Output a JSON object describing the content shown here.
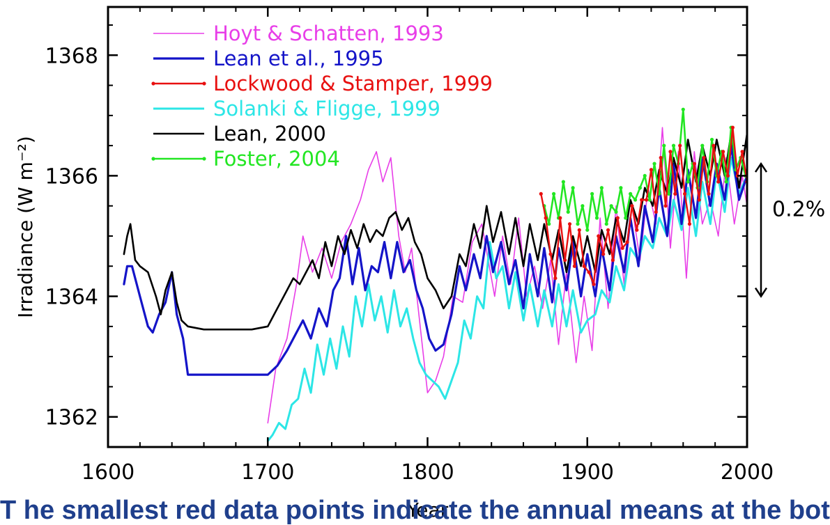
{
  "chart_data": {
    "type": "line",
    "title": "",
    "xlabel": "Year",
    "ylabel": "Irradiance (W m⁻²)",
    "xlim": [
      1600,
      2000
    ],
    "ylim": [
      1361.5,
      1368.8
    ],
    "x_ticks": [
      "1600",
      "1700",
      "1800",
      "1900",
      "2000"
    ],
    "y_ticks": [
      "1362",
      "1364",
      "1366",
      "1368"
    ],
    "legend_position": "top-left",
    "annotation": {
      "text": "0.2%",
      "range": [
        1364.0,
        1366.2
      ]
    },
    "series": [
      {
        "name": "Hoyt & Schatten, 1993",
        "color": "#e83ee8",
        "width": 1.6,
        "x": [
          1700,
          1705,
          1712,
          1718,
          1722,
          1728,
          1734,
          1740,
          1746,
          1752,
          1758,
          1763,
          1768,
          1772,
          1777,
          1782,
          1786,
          1790,
          1795,
          1800,
          1805,
          1810,
          1816,
          1822,
          1828,
          1834,
          1838,
          1842,
          1847,
          1852,
          1857,
          1862,
          1867,
          1872,
          1877,
          1882,
          1887,
          1893,
          1898,
          1903,
          1908,
          1913,
          1918,
          1923,
          1928,
          1933,
          1938,
          1943,
          1947,
          1952,
          1957,
          1962,
          1967,
          1972,
          1977,
          1982,
          1987,
          1992,
          1997,
          2000
        ],
        "y": [
          1361.9,
          1362.8,
          1363.3,
          1364.2,
          1365.0,
          1364.4,
          1364.8,
          1364.3,
          1364.9,
          1365.2,
          1365.6,
          1366.1,
          1366.4,
          1365.9,
          1366.3,
          1365.0,
          1364.4,
          1364.8,
          1363.6,
          1362.4,
          1362.6,
          1363.0,
          1364.0,
          1363.9,
          1364.9,
          1365.2,
          1364.6,
          1364.0,
          1365.0,
          1364.2,
          1365.3,
          1364.0,
          1364.5,
          1363.8,
          1364.6,
          1363.2,
          1364.4,
          1362.9,
          1364.0,
          1363.1,
          1365.3,
          1363.8,
          1365.5,
          1364.2,
          1365.5,
          1364.6,
          1365.8,
          1365.2,
          1366.8,
          1364.8,
          1366.4,
          1364.3,
          1366.4,
          1365.2,
          1365.6,
          1365.0,
          1366.3,
          1365.2,
          1366.0,
          1365.5
        ]
      },
      {
        "name": "Lean et al., 1995",
        "color": "#1414c8",
        "width": 3.2,
        "x": [
          1610,
          1612,
          1615,
          1620,
          1625,
          1628,
          1632,
          1636,
          1640,
          1643,
          1647,
          1650,
          1660,
          1670,
          1680,
          1690,
          1700,
          1706,
          1712,
          1718,
          1722,
          1727,
          1732,
          1737,
          1741,
          1745,
          1749,
          1753,
          1757,
          1761,
          1765,
          1769,
          1773,
          1777,
          1781,
          1785,
          1789,
          1793,
          1797,
          1801,
          1805,
          1810,
          1815,
          1820,
          1824,
          1829,
          1833,
          1837,
          1841,
          1846,
          1851,
          1855,
          1860,
          1864,
          1869,
          1873,
          1878,
          1882,
          1887,
          1891,
          1896,
          1900,
          1905,
          1909,
          1914,
          1918,
          1923,
          1927,
          1932,
          1936,
          1941,
          1945,
          1950,
          1954,
          1959,
          1963,
          1968,
          1972,
          1977,
          1981,
          1986,
          1990,
          1995,
          2000
        ],
        "y": [
          1364.2,
          1364.5,
          1364.5,
          1364.0,
          1363.5,
          1363.4,
          1363.7,
          1363.9,
          1364.4,
          1363.7,
          1363.3,
          1362.7,
          1362.7,
          1362.7,
          1362.7,
          1362.7,
          1362.7,
          1362.85,
          1363.1,
          1363.4,
          1363.6,
          1363.3,
          1363.8,
          1363.5,
          1364.1,
          1364.3,
          1365.0,
          1364.2,
          1364.8,
          1364.1,
          1364.5,
          1364.4,
          1364.9,
          1364.3,
          1364.9,
          1364.4,
          1364.6,
          1364.1,
          1363.8,
          1363.3,
          1363.1,
          1363.2,
          1363.7,
          1364.5,
          1364.1,
          1364.7,
          1364.3,
          1365.0,
          1364.4,
          1364.9,
          1364.2,
          1364.6,
          1363.8,
          1364.7,
          1364.0,
          1364.8,
          1363.9,
          1364.8,
          1364.1,
          1364.9,
          1364.0,
          1364.7,
          1364.0,
          1364.8,
          1364.1,
          1365.0,
          1364.4,
          1365.3,
          1364.5,
          1365.5,
          1364.9,
          1365.8,
          1365.0,
          1366.2,
          1365.2,
          1366.1,
          1365.3,
          1366.3,
          1365.5,
          1366.2,
          1365.6,
          1366.5,
          1365.6,
          1366.0
        ]
      },
      {
        "name": "Lockwood & Stamper, 1999",
        "color": "#e81010",
        "width": 2.4,
        "markers": true,
        "x": [
          1871,
          1874,
          1877,
          1880,
          1883,
          1886,
          1889,
          1892,
          1895,
          1898,
          1901,
          1904,
          1907,
          1910,
          1913,
          1916,
          1919,
          1922,
          1925,
          1928,
          1931,
          1934,
          1937,
          1940,
          1943,
          1946,
          1949,
          1952,
          1955,
          1958,
          1961,
          1964,
          1967,
          1970,
          1973,
          1976,
          1979,
          1982,
          1985,
          1988,
          1991,
          1994,
          1997,
          2000
        ],
        "y": [
          1365.7,
          1365.3,
          1364.7,
          1364.3,
          1365.3,
          1364.6,
          1365.2,
          1364.5,
          1365.1,
          1364.5,
          1364.4,
          1364.2,
          1365.0,
          1364.7,
          1365.1,
          1364.6,
          1365.3,
          1364.8,
          1364.9,
          1365.5,
          1365.1,
          1365.6,
          1365.6,
          1366.1,
          1365.4,
          1366.3,
          1365.5,
          1366.4,
          1365.7,
          1366.5,
          1365.7,
          1365.2,
          1366.2,
          1365.6,
          1366.3,
          1365.7,
          1366.5,
          1365.9,
          1366.4,
          1366.0,
          1366.8,
          1366.0,
          1366.4,
          1365.9
        ]
      },
      {
        "name": "Solanki & Fligge, 1999",
        "color": "#2ce6e6",
        "width": 3.0,
        "x": [
          1700,
          1703,
          1707,
          1711,
          1715,
          1719,
          1723,
          1727,
          1731,
          1735,
          1739,
          1743,
          1747,
          1751,
          1755,
          1759,
          1763,
          1767,
          1771,
          1775,
          1779,
          1783,
          1787,
          1791,
          1795,
          1799,
          1803,
          1807,
          1811,
          1815,
          1819,
          1823,
          1827,
          1831,
          1835,
          1839,
          1843,
          1847,
          1851,
          1855,
          1860,
          1864,
          1869,
          1873,
          1878,
          1882,
          1887,
          1891,
          1896,
          1900,
          1905,
          1909,
          1914,
          1918,
          1923,
          1927,
          1932,
          1936,
          1941,
          1945,
          1950,
          1954,
          1959,
          1963,
          1968,
          1972,
          1977,
          1981,
          1986,
          1990,
          1995,
          2000
        ],
        "y": [
          1361.6,
          1361.7,
          1361.9,
          1361.8,
          1362.2,
          1362.3,
          1362.8,
          1362.4,
          1363.2,
          1362.7,
          1363.3,
          1362.8,
          1363.5,
          1363.0,
          1364.0,
          1363.5,
          1364.2,
          1363.6,
          1364.0,
          1363.4,
          1364.1,
          1363.5,
          1363.8,
          1363.3,
          1362.9,
          1362.7,
          1362.6,
          1362.5,
          1362.3,
          1362.6,
          1362.9,
          1363.6,
          1363.3,
          1364.0,
          1363.8,
          1364.9,
          1364.3,
          1364.5,
          1363.8,
          1364.4,
          1363.6,
          1364.2,
          1363.5,
          1364.1,
          1363.5,
          1364.2,
          1363.5,
          1364.1,
          1363.4,
          1363.6,
          1363.7,
          1364.1,
          1363.9,
          1364.5,
          1364.1,
          1364.8,
          1364.6,
          1365.0,
          1364.8,
          1365.3,
          1365.0,
          1365.6,
          1365.1,
          1365.8,
          1365.0,
          1365.9,
          1365.2,
          1366.1,
          1365.4,
          1366.3,
          1365.7,
          1366.0
        ]
      },
      {
        "name": "Lean, 2000",
        "color": "#000000",
        "width": 2.6,
        "x": [
          1610,
          1612,
          1614,
          1617,
          1620,
          1625,
          1630,
          1633,
          1636,
          1640,
          1643,
          1646,
          1650,
          1660,
          1670,
          1680,
          1690,
          1700,
          1704,
          1708,
          1712,
          1716,
          1720,
          1724,
          1728,
          1732,
          1736,
          1740,
          1744,
          1748,
          1752,
          1756,
          1760,
          1764,
          1768,
          1772,
          1776,
          1780,
          1784,
          1788,
          1792,
          1796,
          1800,
          1805,
          1810,
          1815,
          1820,
          1824,
          1829,
          1833,
          1837,
          1841,
          1846,
          1851,
          1855,
          1860,
          1864,
          1869,
          1873,
          1878,
          1882,
          1887,
          1891,
          1896,
          1900,
          1905,
          1909,
          1914,
          1918,
          1923,
          1927,
          1932,
          1936,
          1941,
          1945,
          1950,
          1954,
          1959,
          1963,
          1968,
          1972,
          1977,
          1981,
          1986,
          1990,
          1995,
          2000
        ],
        "y": [
          1364.7,
          1365.0,
          1365.2,
          1364.6,
          1364.5,
          1364.4,
          1364.0,
          1363.7,
          1364.1,
          1364.4,
          1363.9,
          1363.6,
          1363.5,
          1363.45,
          1363.45,
          1363.45,
          1363.45,
          1363.5,
          1363.7,
          1363.9,
          1364.1,
          1364.3,
          1364.2,
          1364.4,
          1364.6,
          1364.3,
          1364.9,
          1364.5,
          1365.0,
          1364.7,
          1365.1,
          1364.8,
          1365.2,
          1364.9,
          1365.1,
          1365.0,
          1365.3,
          1365.4,
          1365.1,
          1365.3,
          1364.9,
          1364.7,
          1364.3,
          1364.1,
          1363.8,
          1364.0,
          1364.7,
          1364.5,
          1365.2,
          1364.8,
          1365.5,
          1364.9,
          1365.4,
          1364.7,
          1365.3,
          1364.5,
          1365.2,
          1364.6,
          1365.2,
          1364.6,
          1365.1,
          1364.4,
          1365.0,
          1364.5,
          1365.0,
          1364.4,
          1365.1,
          1364.7,
          1365.3,
          1364.9,
          1365.6,
          1365.2,
          1365.8,
          1365.5,
          1366.1,
          1365.7,
          1366.3,
          1365.8,
          1366.6,
          1365.9,
          1366.5,
          1366.0,
          1366.6,
          1366.0,
          1366.7,
          1365.8,
          1366.7
        ]
      },
      {
        "name": "Foster, 2004",
        "color": "#22e622",
        "width": 2.6,
        "markers": true,
        "x": [
          1873,
          1876,
          1879,
          1882,
          1885,
          1888,
          1891,
          1894,
          1897,
          1900,
          1903,
          1906,
          1909,
          1912,
          1915,
          1918,
          1921,
          1924,
          1927,
          1930,
          1933,
          1936,
          1939,
          1942,
          1945,
          1948,
          1951,
          1954,
          1957,
          1960,
          1963,
          1966,
          1969,
          1972,
          1975,
          1978,
          1981,
          1984,
          1987,
          1990,
          1993,
          1996,
          1999
        ],
        "y": [
          1365.5,
          1365.2,
          1365.7,
          1365.3,
          1365.9,
          1365.4,
          1365.8,
          1365.2,
          1365.5,
          1365.1,
          1365.7,
          1365.3,
          1365.8,
          1365.2,
          1365.5,
          1365.4,
          1365.8,
          1365.3,
          1365.7,
          1365.6,
          1365.8,
          1366.0,
          1365.6,
          1366.2,
          1365.7,
          1366.5,
          1365.7,
          1366.5,
          1366.2,
          1367.1,
          1365.9,
          1366.2,
          1365.8,
          1366.5,
          1365.9,
          1366.6,
          1366.0,
          1366.4,
          1365.9,
          1366.8,
          1366.1,
          1366.3,
          1366.0
        ]
      }
    ]
  },
  "caption": "T he smallest red data points indicate the annual means at the bottom of the figure"
}
